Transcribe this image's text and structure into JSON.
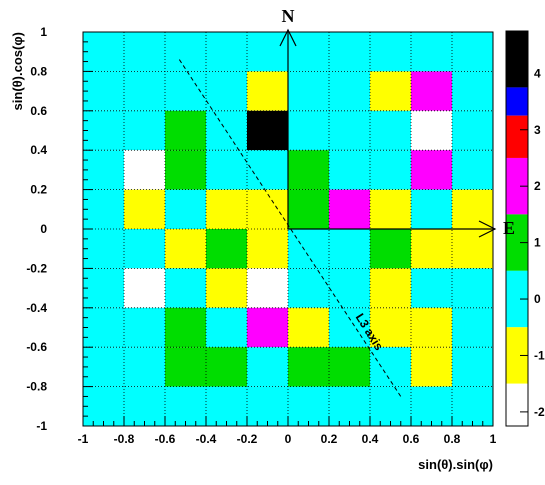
{
  "chart_data": {
    "type": "heatmap",
    "xlabel": "sin(θ).sin(φ)",
    "ylabel": "sin(θ).cos(φ)",
    "xlim": [
      -1,
      1
    ],
    "ylim": [
      -1,
      1
    ],
    "x_ticks": [
      "-1",
      "-0.8",
      "-0.6",
      "-0.4",
      "-0.2",
      "0",
      "0.2",
      "0.4",
      "0.6",
      "0.8",
      "1"
    ],
    "y_ticks": [
      "-1",
      "-0.8",
      "-0.6",
      "-0.4",
      "-0.2",
      "0",
      "0.2",
      "0.4",
      "0.6",
      "0.8",
      "1"
    ],
    "grid": true,
    "bin_width": 0.2,
    "x_bin_edges": [
      -1,
      -0.8,
      -0.6,
      -0.4,
      -0.2,
      0,
      0.2,
      0.4,
      0.6,
      0.8,
      1
    ],
    "y_bin_edges_top_to_bottom": [
      1,
      0.8,
      0.6,
      0.4,
      0.2,
      0,
      -0.2,
      -0.4,
      -0.6,
      -0.8,
      -1
    ],
    "cells_top_to_bottom": [
      [
        0,
        0,
        0,
        0,
        0,
        0,
        0,
        0,
        0,
        0
      ],
      [
        0,
        0,
        0,
        0,
        -1,
        0,
        0,
        -1,
        2,
        0
      ],
      [
        0,
        0,
        1,
        0,
        4,
        0,
        0,
        0,
        -2,
        0
      ],
      [
        0,
        -2,
        1,
        0,
        0,
        1,
        0,
        0,
        2,
        0
      ],
      [
        0,
        -1,
        0,
        -1,
        -1,
        1,
        2,
        -1,
        0,
        -1
      ],
      [
        0,
        0,
        -1,
        1,
        -1,
        0,
        0,
        1,
        -1,
        -1
      ],
      [
        0,
        -2,
        0,
        -1,
        -2,
        0,
        0,
        -1,
        0,
        0
      ],
      [
        0,
        0,
        1,
        0,
        2,
        -1,
        0,
        -1,
        -1,
        0
      ],
      [
        0,
        0,
        1,
        1,
        0,
        1,
        1,
        0,
        -1,
        0
      ],
      [
        0,
        0,
        0,
        0,
        0,
        0,
        0,
        0,
        0,
        0
      ]
    ],
    "colorbar": {
      "ticks": [
        "4",
        "3",
        "2",
        "1",
        "0",
        "-1",
        "-2"
      ],
      "range": [
        -2.25,
        4.75
      ],
      "levels": [
        {
          "value": 4,
          "color": "#000000"
        },
        {
          "value": 3.5,
          "color": "#0000ff"
        },
        {
          "value": 3,
          "color": "#ff0000"
        },
        {
          "value": 2,
          "color": "#ff00ff"
        },
        {
          "value": 1,
          "color": "#00dd00"
        },
        {
          "value": 0,
          "color": "#00ffff"
        },
        {
          "value": -1,
          "color": "#ffff00"
        },
        {
          "value": -2,
          "color": "#ffffff"
        }
      ]
    },
    "annotations": {
      "north": "N",
      "east": "E",
      "axis_label": "L3 axis"
    },
    "l3_axis_line": {
      "from": [
        -0.53,
        0.86
      ],
      "to": [
        0.55,
        -0.85
      ]
    }
  }
}
